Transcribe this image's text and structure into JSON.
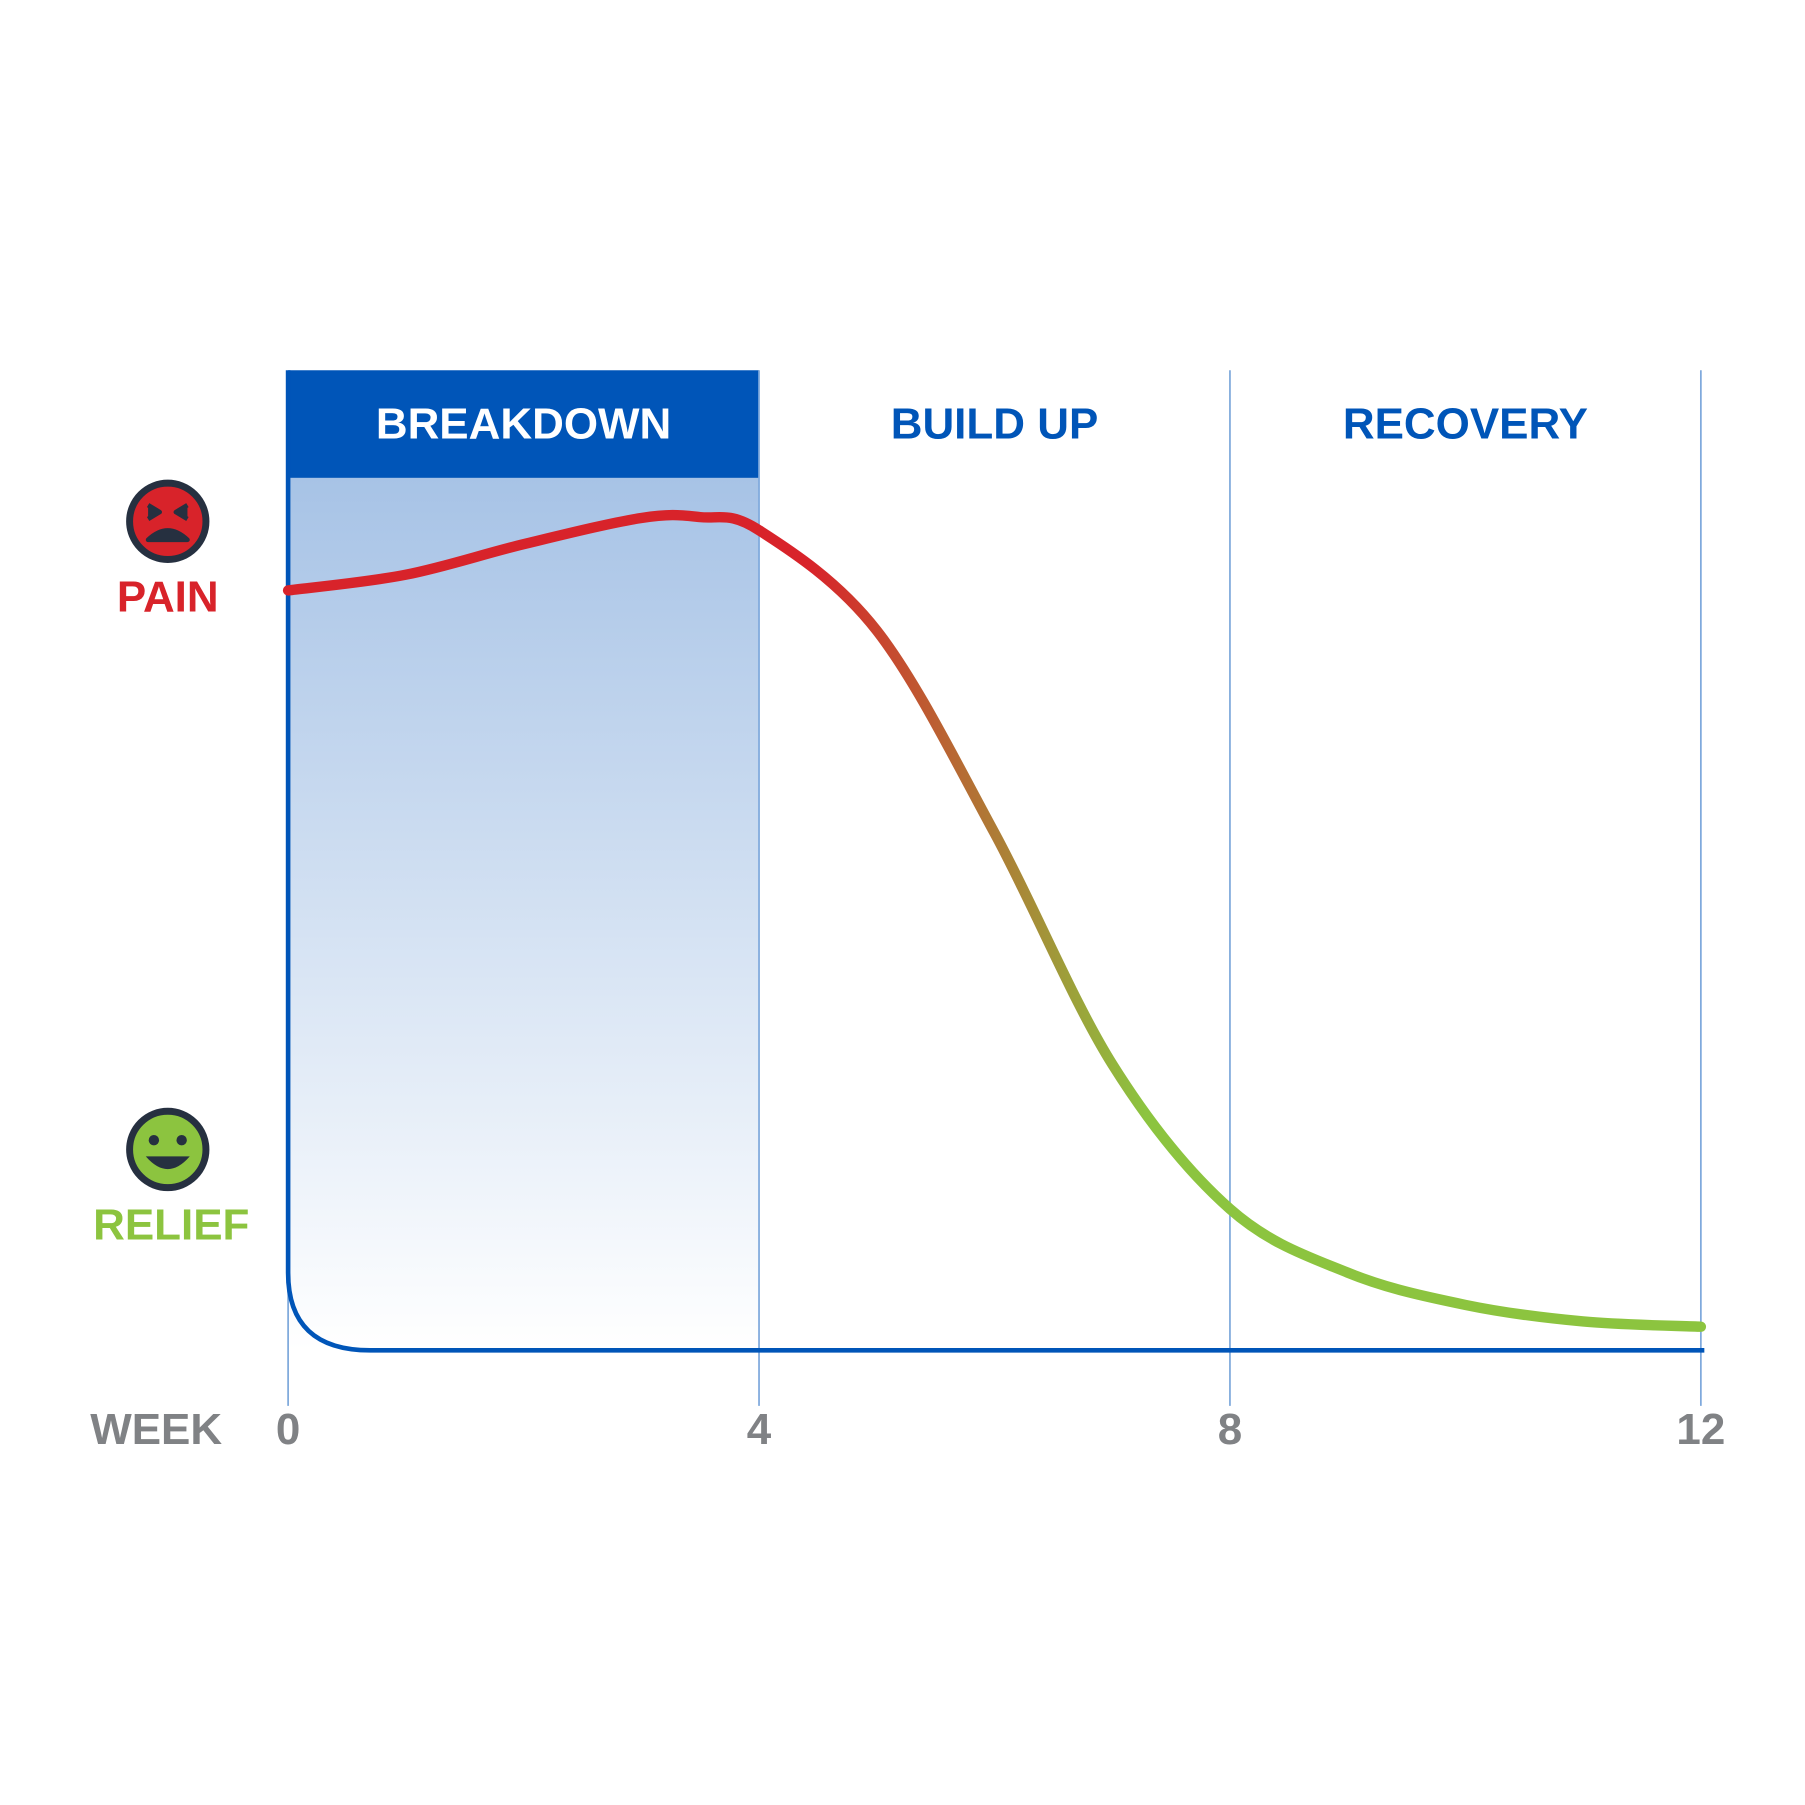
{
  "chart_data": {
    "type": "line",
    "phases": [
      "BREAKDOWN",
      "BUILD UP",
      "RECOVERY"
    ],
    "x_label": "WEEK",
    "x": [
      0,
      1,
      2,
      3,
      3.5,
      4,
      5,
      6,
      7,
      8,
      9,
      10,
      11,
      12
    ],
    "series": [
      {
        "values": [
          8.71,
          8.89,
          9.24,
          9.54,
          9.55,
          9.4,
          8.25,
          5.93,
          3.28,
          1.62,
          0.89,
          0.52,
          0.33,
          0.27
        ],
        "colors": [
          "#d8232a",
          "#8cc43f"
        ]
      }
    ],
    "xlim": [
      0,
      12
    ],
    "xticks": [
      0,
      4,
      8,
      12
    ],
    "ylim": [
      0,
      10
    ],
    "yticks": [
      {
        "value": 8.6,
        "label": "PAIN"
      },
      {
        "value": 1.4,
        "label": "RELIEF"
      }
    ],
    "axis_color": "#0055b8"
  }
}
